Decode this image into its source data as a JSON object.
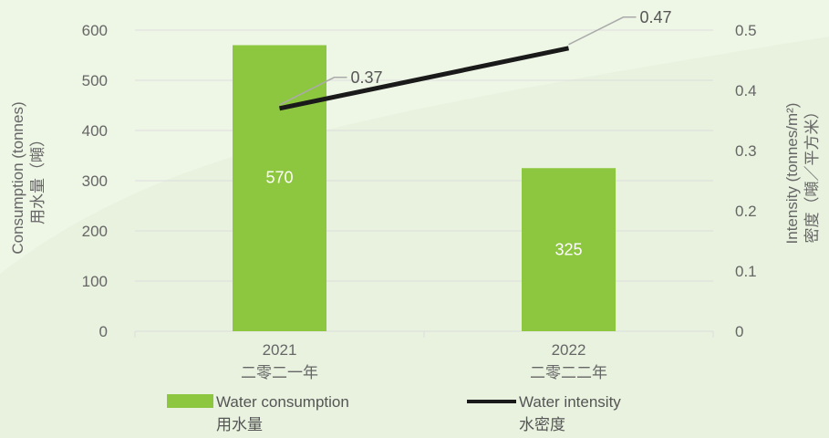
{
  "chart_data": {
    "type": "bar",
    "categories": [
      "2021",
      "2022"
    ],
    "categories_zh": [
      "二零二一年",
      "二零二二年"
    ],
    "series": [
      {
        "name": "Water consumption",
        "name_zh": "用水量",
        "type": "bar",
        "axis": "left",
        "values": [
          570,
          325
        ],
        "color": "#8dc63f"
      },
      {
        "name": "Water intensity",
        "name_zh": "水密度",
        "type": "line",
        "axis": "right",
        "values": [
          0.37,
          0.47
        ],
        "labels": [
          "0.37",
          "0.47"
        ],
        "color": "#1a1a1a"
      }
    ],
    "ylabel": "Consumption (tonnes)",
    "ylabel_zh": "用水量（噸）",
    "y2label": "Intensity (tonnes/m²)",
    "y2label_zh": "密度（噸／平方米）",
    "ylim": [
      0,
      600
    ],
    "yticks": [
      "0",
      "100",
      "200",
      "300",
      "400",
      "500",
      "600"
    ],
    "y2lim": [
      0,
      0.5
    ],
    "y2ticks": [
      "0",
      "0.1",
      "0.2",
      "0.3",
      "0.4",
      "0.5"
    ],
    "grid": true,
    "legend": "bottom"
  },
  "colors": {
    "bar": "#8dc63f",
    "line": "#1a1a1a",
    "grid": "#dddddd",
    "leader": "#aaaaaa",
    "background": "#eef6e6"
  }
}
